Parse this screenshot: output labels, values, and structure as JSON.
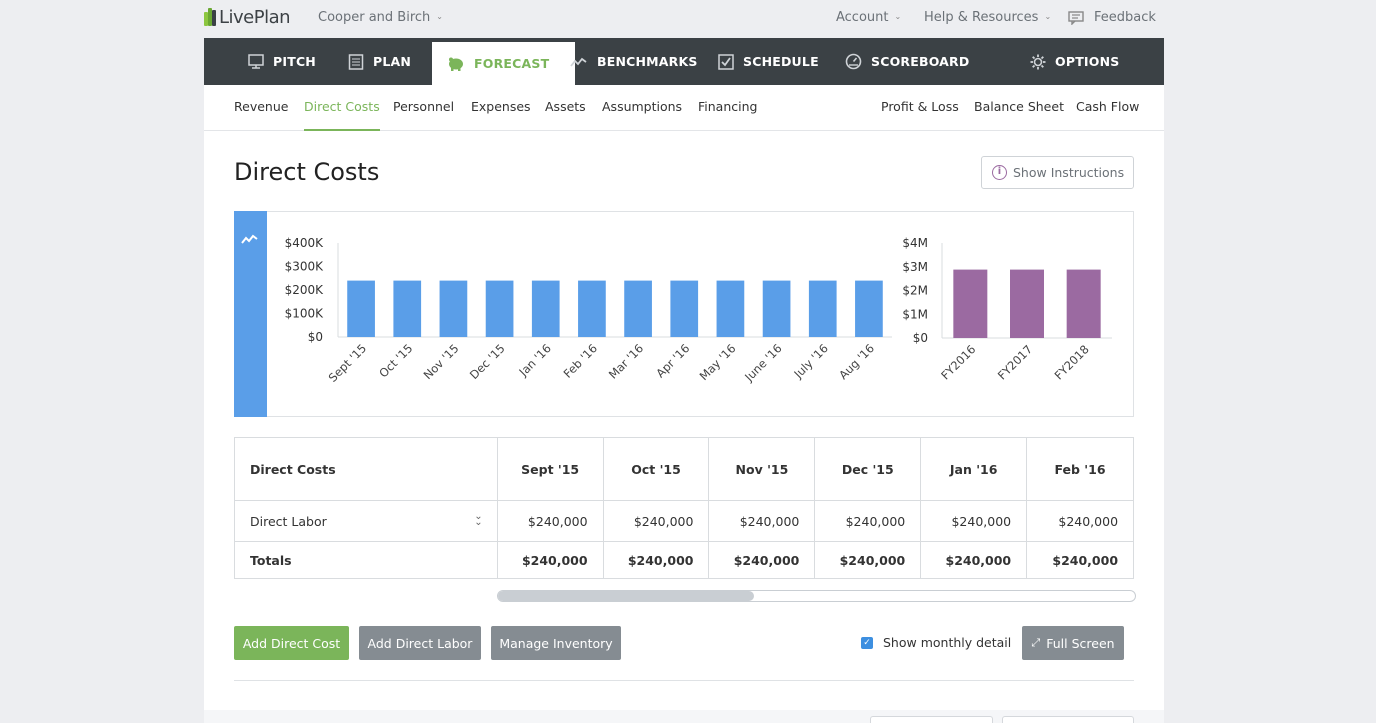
{
  "app": {
    "logo_text": "LivePlan",
    "company": "Cooper and Birch",
    "account": "Account",
    "help": "Help & Resources",
    "feedback": "Feedback"
  },
  "main_nav": [
    {
      "label": "PITCH",
      "icon": "monitor-icon"
    },
    {
      "label": "PLAN",
      "icon": "document-icon"
    },
    {
      "label": "FORECAST",
      "icon": "piggy-bank-icon",
      "active": true
    },
    {
      "label": "BENCHMARKS",
      "icon": "trend-line-icon"
    },
    {
      "label": "SCHEDULE",
      "icon": "checkbox-icon"
    },
    {
      "label": "SCOREBOARD",
      "icon": "gauge-icon"
    },
    {
      "label": "OPTIONS",
      "icon": "gear-icon"
    }
  ],
  "sub_nav": {
    "left": [
      "Revenue",
      "Direct Costs",
      "Personnel",
      "Expenses",
      "Assets",
      "Assumptions",
      "Financing"
    ],
    "right": [
      "Profit & Loss",
      "Balance Sheet",
      "Cash Flow"
    ],
    "active": "Direct Costs"
  },
  "page": {
    "title": "Direct Costs",
    "instructions_button": "Show Instructions"
  },
  "chart_data": [
    {
      "type": "bar",
      "categories": [
        "Sept '15",
        "Oct '15",
        "Nov '15",
        "Dec '15",
        "Jan '16",
        "Feb '16",
        "Mar '16",
        "Apr '16",
        "May '16",
        "June '16",
        "July '16",
        "Aug '16"
      ],
      "values": [
        240000,
        240000,
        240000,
        240000,
        240000,
        240000,
        240000,
        240000,
        240000,
        240000,
        240000,
        240000
      ],
      "ylim": [
        0,
        400000
      ],
      "yticks": [
        "$0",
        "$100K",
        "$200K",
        "$300K",
        "$400K"
      ],
      "color": "#5a9ee8"
    },
    {
      "type": "bar",
      "categories": [
        "FY2016",
        "FY2017",
        "FY2018"
      ],
      "values": [
        2880000,
        2880000,
        2880000
      ],
      "ylim": [
        0,
        4000000
      ],
      "yticks": [
        "$0",
        "$1M",
        "$2M",
        "$3M",
        "$4M"
      ],
      "color": "#9b6aa1"
    }
  ],
  "table": {
    "header": "Direct Costs",
    "columns": [
      "Sept '15",
      "Oct '15",
      "Nov '15",
      "Dec '15",
      "Jan '16",
      "Feb '16"
    ],
    "rows": [
      {
        "label": "Direct Labor",
        "values": [
          "$240,000",
          "$240,000",
          "$240,000",
          "$240,000",
          "$240,000",
          "$240,000"
        ]
      }
    ],
    "totals": {
      "label": "Totals",
      "values": [
        "$240,000",
        "$240,000",
        "$240,000",
        "$240,000",
        "$240,000",
        "$240,000"
      ]
    }
  },
  "actions": {
    "add_direct_cost": "Add Direct Cost",
    "add_direct_labor": "Add Direct Labor",
    "manage_inventory": "Manage Inventory",
    "show_monthly_detail": "Show monthly detail",
    "show_monthly_checked": true,
    "full_screen": "Full Screen"
  },
  "colors": {
    "accent_green": "#7bb55a",
    "nav_dark": "#3b4145",
    "chart_blue": "#5a9ee8",
    "chart_purple": "#9b6aa1"
  }
}
